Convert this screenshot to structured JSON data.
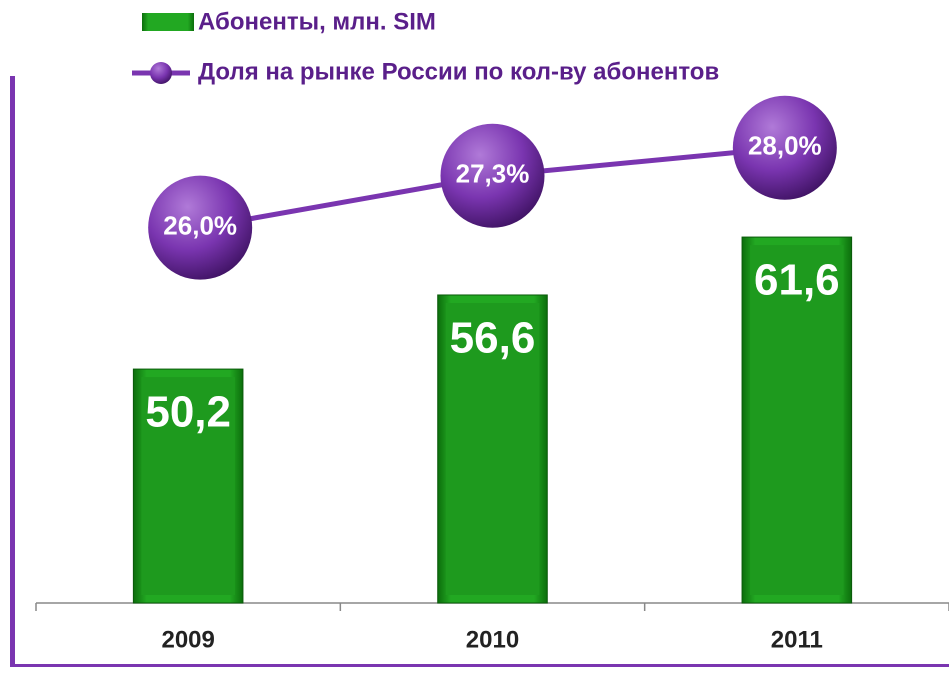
{
  "chart_data": {
    "type": "bar+line",
    "categories": [
      "2009",
      "2010",
      "2011"
    ],
    "series": [
      {
        "name": "Абоненты, млн. SIM",
        "type": "bar",
        "color": "#1e9a1e",
        "values": [
          50.2,
          56.6,
          61.6
        ],
        "value_labels": [
          "50,2",
          "56,6",
          "61,6"
        ]
      },
      {
        "name": "Доля на рынке России по кол-ву абонентов",
        "type": "line",
        "axis": "y2",
        "color": "#7a35b0",
        "values": [
          26.0,
          27.3,
          28.0
        ],
        "value_labels": [
          "26,0%",
          "27,3%",
          "28,0%"
        ]
      }
    ],
    "ylim": [
      30,
      80
    ],
    "y2lim": [
      16.6,
      31.1
    ]
  }
}
